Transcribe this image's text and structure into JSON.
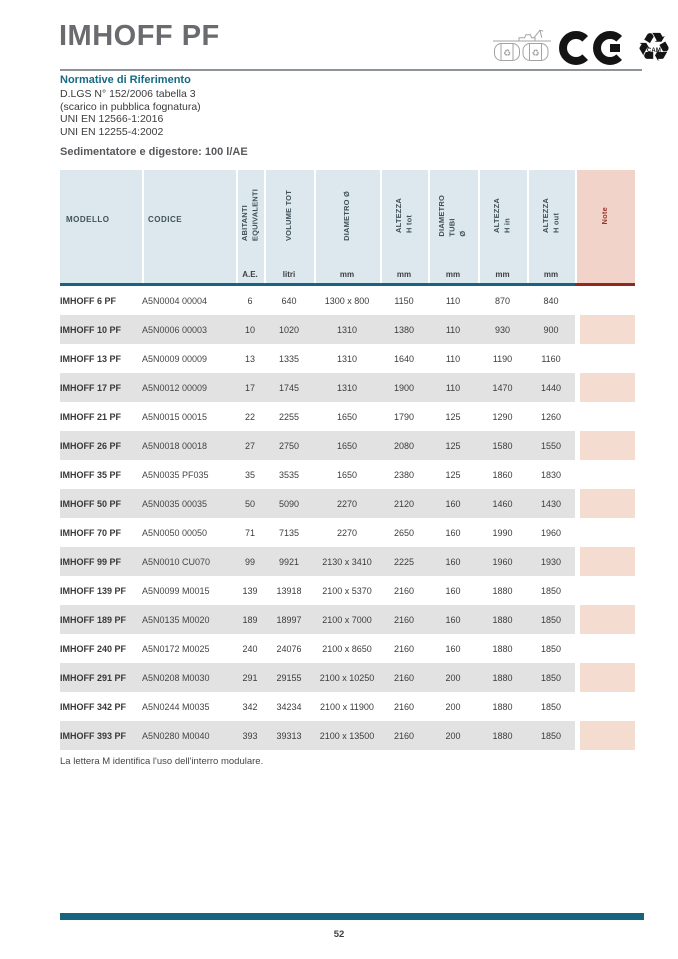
{
  "page": {
    "title": "IMHOFF PF",
    "footnote": "La lettera M identifica l'uso dell'interro modulare.",
    "page_number": "52"
  },
  "header_icons": {
    "cam_label": "CAM"
  },
  "normative": {
    "heading": "Normative di Riferimento",
    "lines": [
      "D.LGS N° 152/2006 tabella 3",
      "(scarico in pubblica fognatura)",
      "UNI EN 12566-1:2016",
      "UNI EN 12255-4:2002"
    ]
  },
  "subtitle": "Sedimentatore e digestore: 100 l/AE",
  "colors": {
    "teal": "#16647e",
    "heading-teal": "#176a82",
    "red": "#9c352b",
    "red-border": "#8e2a22",
    "header-bg": "#dce8ed",
    "note-header-bg": "#f2d3c9",
    "row-alt": "#e3e2e2",
    "note-row-bg": "#f5dcd1",
    "title-gray": "#6a6a6f"
  },
  "table": {
    "columns": [
      {
        "id": "modello",
        "label": "MODELLO",
        "unit": "",
        "rotated": false
      },
      {
        "id": "codice",
        "label": "CODICE",
        "unit": "",
        "rotated": false
      },
      {
        "id": "ae",
        "label": "ABITANTI\nEQUIVALENTI",
        "unit": "A.E.",
        "rotated": true
      },
      {
        "id": "volume",
        "label": "VOLUME TOT",
        "unit": "litri",
        "rotated": true
      },
      {
        "id": "diametro",
        "label": "DIAMETRO Ø",
        "unit": "mm",
        "rotated": true
      },
      {
        "id": "h_tot",
        "label": "ALTEZZA\nH tot",
        "unit": "mm",
        "rotated": true
      },
      {
        "id": "tubi",
        "label": "DIAMETRO\nTUBI\nØ",
        "unit": "mm",
        "rotated": true
      },
      {
        "id": "h_in",
        "label": "ALTEZZA\nH in",
        "unit": "mm",
        "rotated": true
      },
      {
        "id": "h_out",
        "label": "ALTEZZA\nH out",
        "unit": "mm",
        "rotated": true
      },
      {
        "id": "note",
        "label": "Note",
        "unit": "",
        "rotated": true
      }
    ],
    "rows": [
      {
        "modello": "IMHOFF 6 PF",
        "codice": "A5N0004 00004",
        "ae": "6",
        "volume": "640",
        "diametro": "1300 x 800",
        "h_tot": "1150",
        "tubi": "110",
        "h_in": "870",
        "h_out": "840",
        "note": ""
      },
      {
        "modello": "IMHOFF 10 PF",
        "codice": "A5N0006 00003",
        "ae": "10",
        "volume": "1020",
        "diametro": "1310",
        "h_tot": "1380",
        "tubi": "110",
        "h_in": "930",
        "h_out": "900",
        "note": ""
      },
      {
        "modello": "IMHOFF 13 PF",
        "codice": "A5N0009 00009",
        "ae": "13",
        "volume": "1335",
        "diametro": "1310",
        "h_tot": "1640",
        "tubi": "110",
        "h_in": "1190",
        "h_out": "1160",
        "note": ""
      },
      {
        "modello": "IMHOFF 17 PF",
        "codice": "A5N0012 00009",
        "ae": "17",
        "volume": "1745",
        "diametro": "1310",
        "h_tot": "1900",
        "tubi": "110",
        "h_in": "1470",
        "h_out": "1440",
        "note": ""
      },
      {
        "modello": "IMHOFF 21 PF",
        "codice": "A5N0015 00015",
        "ae": "22",
        "volume": "2255",
        "diametro": "1650",
        "h_tot": "1790",
        "tubi": "125",
        "h_in": "1290",
        "h_out": "1260",
        "note": ""
      },
      {
        "modello": "IMHOFF 26 PF",
        "codice": "A5N0018 00018",
        "ae": "27",
        "volume": "2750",
        "diametro": "1650",
        "h_tot": "2080",
        "tubi": "125",
        "h_in": "1580",
        "h_out": "1550",
        "note": ""
      },
      {
        "modello": "IMHOFF 35 PF",
        "codice": "A5N0035 PF035",
        "ae": "35",
        "volume": "3535",
        "diametro": "1650",
        "h_tot": "2380",
        "tubi": "125",
        "h_in": "1860",
        "h_out": "1830",
        "note": ""
      },
      {
        "modello": "IMHOFF 50 PF",
        "codice": "A5N0035 00035",
        "ae": "50",
        "volume": "5090",
        "diametro": "2270",
        "h_tot": "2120",
        "tubi": "160",
        "h_in": "1460",
        "h_out": "1430",
        "note": ""
      },
      {
        "modello": "IMHOFF 70 PF",
        "codice": "A5N0050 00050",
        "ae": "71",
        "volume": "7135",
        "diametro": "2270",
        "h_tot": "2650",
        "tubi": "160",
        "h_in": "1990",
        "h_out": "1960",
        "note": ""
      },
      {
        "modello": "IMHOFF 99 PF",
        "codice": "A5N0010 CU070",
        "ae": "99",
        "volume": "9921",
        "diametro": "2130 x 3410",
        "h_tot": "2225",
        "tubi": "160",
        "h_in": "1960",
        "h_out": "1930",
        "note": ""
      },
      {
        "modello": "IMHOFF 139 PF",
        "codice": "A5N0099 M0015",
        "ae": "139",
        "volume": "13918",
        "diametro": "2100 x 5370",
        "h_tot": "2160",
        "tubi": "160",
        "h_in": "1880",
        "h_out": "1850",
        "note": ""
      },
      {
        "modello": "IMHOFF 189 PF",
        "codice": "A5N0135 M0020",
        "ae": "189",
        "volume": "18997",
        "diametro": "2100 x 7000",
        "h_tot": "2160",
        "tubi": "160",
        "h_in": "1880",
        "h_out": "1850",
        "note": ""
      },
      {
        "modello": "IMHOFF 240 PF",
        "codice": "A5N0172 M0025",
        "ae": "240",
        "volume": "24076",
        "diametro": "2100 x 8650",
        "h_tot": "2160",
        "tubi": "160",
        "h_in": "1880",
        "h_out": "1850",
        "note": ""
      },
      {
        "modello": "IMHOFF 291 PF",
        "codice": "A5N0208 M0030",
        "ae": "291",
        "volume": "29155",
        "diametro": "2100 x 10250",
        "h_tot": "2160",
        "tubi": "200",
        "h_in": "1880",
        "h_out": "1850",
        "note": ""
      },
      {
        "modello": "IMHOFF 342 PF",
        "codice": "A5N0244 M0035",
        "ae": "342",
        "volume": "34234",
        "diametro": "2100 x 11900",
        "h_tot": "2160",
        "tubi": "200",
        "h_in": "1880",
        "h_out": "1850",
        "note": ""
      },
      {
        "modello": "IMHOFF 393 PF",
        "codice": "A5N0280 M0040",
        "ae": "393",
        "volume": "39313",
        "diametro": "2100 x 13500",
        "h_tot": "2160",
        "tubi": "200",
        "h_in": "1880",
        "h_out": "1850",
        "note": ""
      }
    ]
  }
}
